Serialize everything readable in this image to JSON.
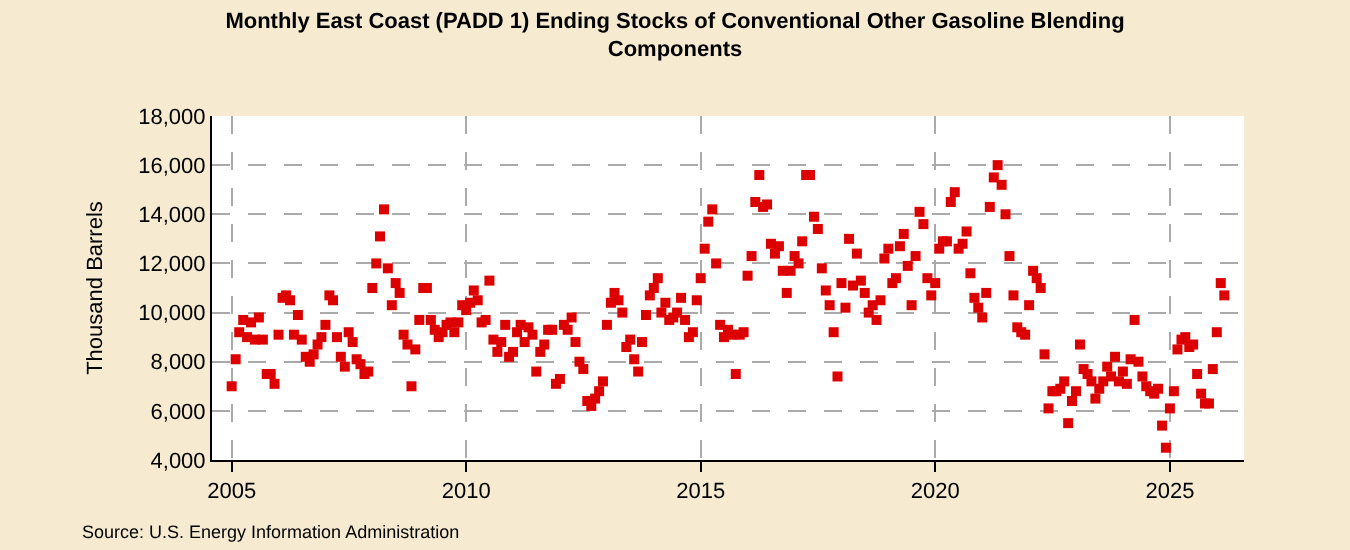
{
  "chart_data": {
    "type": "scatter",
    "title": "Monthly East Coast (PADD 1) Ending Stocks of Conventional Other Gasoline Blending Components",
    "ylabel": "Thousand Barrels",
    "annotations": [
      "Source: U.S. Energy Information Administration"
    ],
    "marker": "square",
    "grid": true,
    "xlim": [
      "2004-08",
      "2026-08"
    ],
    "xticks": [
      {
        "value": "2005",
        "label": "2005"
      },
      {
        "value": "2010",
        "label": "2010"
      },
      {
        "value": "2015",
        "label": "2015"
      },
      {
        "value": "2020",
        "label": "2020"
      },
      {
        "value": "2025",
        "label": "2025"
      }
    ],
    "ylim": [
      4000,
      18000
    ],
    "yticks": [
      {
        "value": 4000,
        "label": "4,000"
      },
      {
        "value": 6000,
        "label": "6,000"
      },
      {
        "value": 8000,
        "label": "8,000"
      },
      {
        "value": 10000,
        "label": "10,000"
      },
      {
        "value": 12000,
        "label": "12,000"
      },
      {
        "value": 14000,
        "label": "14,000"
      },
      {
        "value": 16000,
        "label": "16,000"
      },
      {
        "value": 18000,
        "label": "18,000"
      }
    ],
    "x": [
      "2005-01",
      "2005-02",
      "2005-03",
      "2005-04",
      "2005-05",
      "2005-06",
      "2005-07",
      "2005-08",
      "2005-09",
      "2005-10",
      "2005-11",
      "2005-12",
      "2006-01",
      "2006-02",
      "2006-03",
      "2006-04",
      "2006-05",
      "2006-06",
      "2006-07",
      "2006-08",
      "2006-09",
      "2006-10",
      "2006-11",
      "2006-12",
      "2007-01",
      "2007-02",
      "2007-03",
      "2007-04",
      "2007-05",
      "2007-06",
      "2007-07",
      "2007-08",
      "2007-09",
      "2007-10",
      "2007-11",
      "2007-12",
      "2008-01",
      "2008-02",
      "2008-03",
      "2008-04",
      "2008-05",
      "2008-06",
      "2008-07",
      "2008-08",
      "2008-09",
      "2008-10",
      "2008-11",
      "2008-12",
      "2009-01",
      "2009-02",
      "2009-03",
      "2009-04",
      "2009-05",
      "2009-06",
      "2009-07",
      "2009-08",
      "2009-09",
      "2009-10",
      "2009-11",
      "2009-12",
      "2010-01",
      "2010-02",
      "2010-03",
      "2010-04",
      "2010-05",
      "2010-06",
      "2010-07",
      "2010-08",
      "2010-09",
      "2010-10",
      "2010-11",
      "2010-12",
      "2011-01",
      "2011-02",
      "2011-03",
      "2011-04",
      "2011-05",
      "2011-06",
      "2011-07",
      "2011-08",
      "2011-09",
      "2011-10",
      "2011-11",
      "2011-12",
      "2012-01",
      "2012-02",
      "2012-03",
      "2012-04",
      "2012-05",
      "2012-06",
      "2012-07",
      "2012-08",
      "2012-09",
      "2012-10",
      "2012-11",
      "2012-12",
      "2013-01",
      "2013-02",
      "2013-03",
      "2013-04",
      "2013-05",
      "2013-06",
      "2013-07",
      "2013-08",
      "2013-09",
      "2013-10",
      "2013-11",
      "2013-12",
      "2014-01",
      "2014-02",
      "2014-03",
      "2014-04",
      "2014-05",
      "2014-06",
      "2014-07",
      "2014-08",
      "2014-09",
      "2014-10",
      "2014-11",
      "2014-12",
      "2015-01",
      "2015-02",
      "2015-03",
      "2015-04",
      "2015-05",
      "2015-06",
      "2015-07",
      "2015-08",
      "2015-09",
      "2015-10",
      "2015-11",
      "2015-12",
      "2016-01",
      "2016-02",
      "2016-03",
      "2016-04",
      "2016-05",
      "2016-06",
      "2016-07",
      "2016-08",
      "2016-09",
      "2016-10",
      "2016-11",
      "2016-12",
      "2017-01",
      "2017-02",
      "2017-03",
      "2017-04",
      "2017-05",
      "2017-06",
      "2017-07",
      "2017-08",
      "2017-09",
      "2017-10",
      "2017-11",
      "2017-12",
      "2018-01",
      "2018-02",
      "2018-03",
      "2018-04",
      "2018-05",
      "2018-06",
      "2018-07",
      "2018-08",
      "2018-09",
      "2018-10",
      "2018-11",
      "2018-12",
      "2019-01",
      "2019-02",
      "2019-03",
      "2019-04",
      "2019-05",
      "2019-06",
      "2019-07",
      "2019-08",
      "2019-09",
      "2019-10",
      "2019-11",
      "2019-12",
      "2020-01",
      "2020-02",
      "2020-03",
      "2020-04",
      "2020-05",
      "2020-06",
      "2020-07",
      "2020-08",
      "2020-09",
      "2020-10",
      "2020-11",
      "2020-12",
      "2021-01",
      "2021-02",
      "2021-03",
      "2021-04",
      "2021-05",
      "2021-06",
      "2021-07",
      "2021-08",
      "2021-09",
      "2021-10",
      "2021-11",
      "2021-12",
      "2022-01",
      "2022-02",
      "2022-03",
      "2022-04",
      "2022-05",
      "2022-06",
      "2022-07",
      "2022-08",
      "2022-09",
      "2022-10",
      "2022-11",
      "2022-12",
      "2023-01",
      "2023-02",
      "2023-03",
      "2023-04",
      "2023-05",
      "2023-06",
      "2023-07",
      "2023-08",
      "2023-09",
      "2023-10",
      "2023-11",
      "2023-12",
      "2024-01",
      "2024-02",
      "2024-03",
      "2024-04",
      "2024-05",
      "2024-06",
      "2024-07",
      "2024-08",
      "2024-09",
      "2024-10",
      "2024-11",
      "2024-12",
      "2025-01",
      "2025-02",
      "2025-03",
      "2025-04",
      "2025-05",
      "2025-06",
      "2025-07",
      "2025-08",
      "2025-09",
      "2025-10",
      "2025-11",
      "2025-12",
      "2026-01",
      "2026-02",
      "2026-03"
    ],
    "series": [
      {
        "color": "#dd0000",
        "values": [
          7000,
          8100,
          9200,
          9700,
          9000,
          9600,
          8900,
          9800,
          8900,
          7500,
          7500,
          7100,
          9100,
          10600,
          10700,
          10500,
          9100,
          9900,
          8900,
          8200,
          8000,
          8300,
          8700,
          9000,
          9500,
          10700,
          10500,
          9000,
          8200,
          7800,
          9200,
          8800,
          8100,
          7900,
          7500,
          7600,
          11000,
          12000,
          13100,
          14200,
          11800,
          10300,
          11200,
          10800,
          9100,
          8700,
          7000,
          8500,
          9700,
          11000,
          11000,
          9700,
          9300,
          9000,
          9200,
          9500,
          9600,
          9200,
          9600,
          10300,
          10100,
          10400,
          10900,
          10500,
          9600,
          9700,
          11300,
          8900,
          8400,
          8800,
          9500,
          8200,
          8400,
          9200,
          9500,
          8800,
          9400,
          9100,
          7600,
          8400,
          8700,
          9300,
          9300,
          7100,
          7300,
          9500,
          9300,
          9800,
          8800,
          8000,
          7700,
          6400,
          6200,
          6500,
          6800,
          7200,
          9500,
          10400,
          10800,
          10500,
          10000,
          8600,
          8900,
          8100,
          7600,
          8800,
          9900,
          10700,
          11000,
          11400,
          10000,
          10400,
          9700,
          9800,
          10000,
          10600,
          9700,
          9000,
          9200,
          10500,
          11400,
          12600,
          13700,
          14200,
          12000,
          9500,
          9000,
          9300,
          9100,
          7500,
          9100,
          9200,
          11500,
          12300,
          14500,
          15600,
          14300,
          14400,
          12800,
          12400,
          12700,
          11700,
          10800,
          11700,
          12300,
          12000,
          12900,
          15600,
          15600,
          13900,
          13400,
          11800,
          10900,
          10300,
          9200,
          7400,
          11200,
          10200,
          13000,
          11100,
          12400,
          11300,
          10800,
          10000,
          10300,
          9700,
          10500,
          12200,
          12600,
          11200,
          11400,
          12700,
          13200,
          11900,
          10300,
          12300,
          14100,
          13600,
          11400,
          10700,
          11200,
          12600,
          12900,
          12900,
          14500,
          14900,
          12600,
          12800,
          13300,
          11600,
          10600,
          10200,
          9800,
          10800,
          14300,
          15500,
          16000,
          15200,
          14000,
          12300,
          10700,
          9400,
          9200,
          9100,
          10300,
          11700,
          11400,
          11000,
          8300,
          6100,
          6800,
          6800,
          6900,
          7200,
          5500,
          6400,
          6800,
          8700,
          7700,
          7500,
          7200,
          6500,
          6900,
          7200,
          7800,
          7400,
          8200,
          7200,
          7600,
          7100,
          8100,
          9700,
          8000,
          7400,
          7000,
          6800,
          6700,
          6900,
          5400,
          4500,
          6100,
          6800,
          8500,
          8900,
          9000,
          8600,
          8700,
          7500,
          6700,
          6300,
          6300,
          7700,
          9200,
          11200,
          10700
        ]
      }
    ]
  }
}
